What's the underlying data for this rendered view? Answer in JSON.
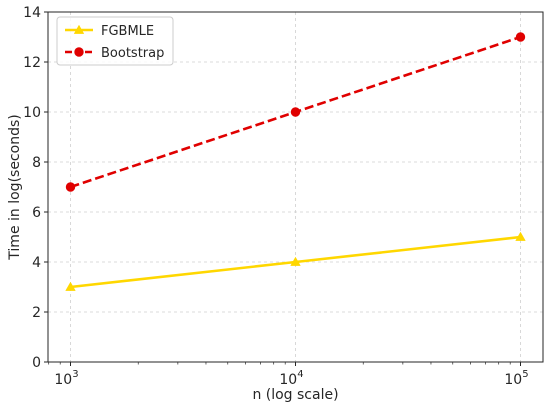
{
  "chart_data": {
    "type": "line",
    "title": "",
    "xlabel": "n (log scale)",
    "ylabel": "Time in log(seconds)",
    "x_scale": "log",
    "x": [
      1000,
      10000,
      100000
    ],
    "x_tick_labels": [
      {
        "base": "10",
        "exp": "3"
      },
      {
        "base": "10",
        "exp": "4"
      },
      {
        "base": "10",
        "exp": "5"
      }
    ],
    "xlim": [
      794.33,
      125892.5
    ],
    "ylim": [
      0,
      14
    ],
    "y_ticks": [
      0,
      2,
      4,
      6,
      8,
      10,
      12,
      14
    ],
    "grid": true,
    "legend_position": "top-left",
    "series": [
      {
        "name": "FGBMLE",
        "values": [
          3,
          4,
          5
        ],
        "color": "#FFD700",
        "line_style": "solid",
        "marker": "triangle"
      },
      {
        "name": "Bootstrap",
        "values": [
          7,
          10,
          13
        ],
        "color": "#E00000",
        "line_style": "dashed",
        "marker": "circle"
      }
    ]
  }
}
